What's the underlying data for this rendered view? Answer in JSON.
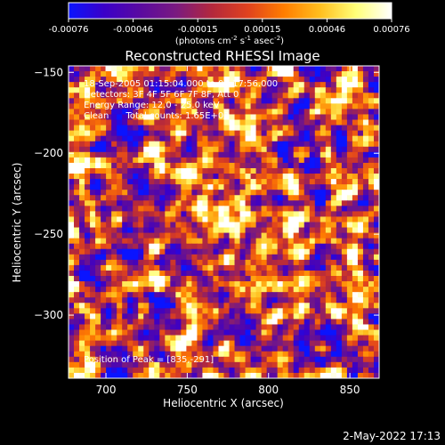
{
  "colorbar": {
    "ticks": [
      "-0.00076",
      "-0.00046",
      "-0.00015",
      "0.00015",
      "0.00046",
      "0.00076"
    ],
    "unit_label": "(photons cm",
    "unit_sup1": "-2",
    "unit_mid1": " s",
    "unit_sup2": "-1",
    "unit_mid2": " asec",
    "unit_sup3": "-2",
    "unit_close": ")",
    "colors": [
      "#0a14ff",
      "#3b00c8",
      "#5a0aa0",
      "#7a1a80",
      "#b4283c",
      "#e0421e",
      "#ff7d00",
      "#ffbe1e",
      "#ffff78",
      "#ffffff"
    ]
  },
  "chart_data": {
    "type": "heatmap",
    "title": "Reconstructed RHESSI Image",
    "xlabel": "Heliocentric X (arcsec)",
    "ylabel": "Heliocentric Y (arcsec)",
    "xlim": [
      677,
      868
    ],
    "ylim": [
      -339,
      -146
    ],
    "x_ticks": [
      700,
      750,
      800,
      850
    ],
    "y_ticks": [
      -150,
      -200,
      -250,
      -300
    ],
    "x_tick_labels": [
      "700",
      "750",
      "800",
      "850"
    ],
    "y_tick_labels": [
      "-150",
      "-200",
      "-250",
      "-300"
    ],
    "annotations": [
      "18-Sep-2005 01:15:04.000 to 01:17:56.000",
      "Detectors: 3F 4F 5F 6F 7F 8F, Att 0",
      "Energy Range: 12.0 - 25.0 keV",
      "Clean      Total counts: 1.65E+03"
    ],
    "peak_label": "Position of Peak = [835,-291]",
    "peak": [
      835,
      -291
    ]
  },
  "footer": {
    "date": "2-May-2022 17:13"
  }
}
